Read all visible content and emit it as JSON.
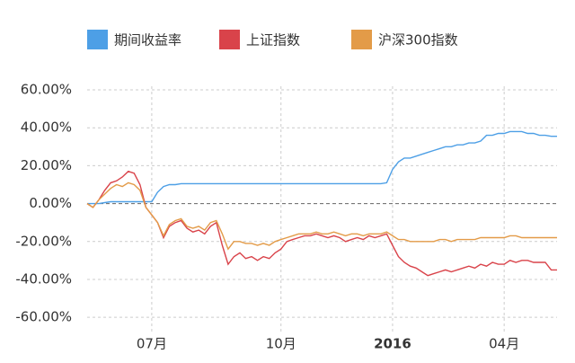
{
  "chart_data": {
    "type": "line",
    "categories": [
      null,
      null,
      null,
      null,
      null,
      null,
      null,
      null,
      null,
      null,
      null,
      "07月",
      null,
      null,
      null,
      null,
      null,
      null,
      null,
      null,
      null,
      null,
      null,
      null,
      null,
      null,
      null,
      null,
      null,
      null,
      null,
      null,
      null,
      "10月",
      null,
      null,
      null,
      null,
      null,
      null,
      null,
      null,
      null,
      null,
      null,
      null,
      null,
      null,
      null,
      null,
      null,
      null,
      "2016",
      null,
      null,
      null,
      null,
      null,
      null,
      null,
      null,
      null,
      null,
      null,
      null,
      null,
      null,
      null,
      null,
      null,
      null,
      "04月",
      null,
      null,
      null,
      null,
      null,
      null,
      null,
      null,
      null
    ],
    "series": [
      {
        "name": "期间收益率",
        "color": "#4d9fe6",
        "values": [
          0,
          0,
          0,
          0.5,
          1,
          1,
          1,
          1,
          1,
          1,
          1,
          1,
          6,
          9,
          10,
          10,
          10.5,
          10.5,
          10.5,
          10.5,
          10.5,
          10.5,
          10.5,
          10.5,
          10.5,
          10.5,
          10.5,
          10.5,
          10.5,
          10.5,
          10.5,
          10.5,
          10.5,
          10.5,
          10.5,
          10.5,
          10.5,
          10.5,
          10.5,
          10.5,
          10.5,
          10.5,
          10.5,
          10.5,
          10.5,
          10.5,
          10.5,
          10.5,
          10.5,
          10.5,
          10.5,
          11,
          18,
          22,
          24,
          24,
          25,
          26,
          27,
          28,
          29,
          30,
          30,
          31,
          31,
          32,
          32,
          33,
          36,
          36,
          37,
          37,
          38,
          38,
          38,
          37,
          37,
          36,
          36,
          35.5,
          35.5
        ]
      },
      {
        "name": "上证指数",
        "color": "#d9434a",
        "values": [
          0,
          -2,
          2,
          7,
          11,
          12,
          14,
          17,
          16,
          10,
          -2,
          -6,
          -10,
          -18,
          -12,
          -10,
          -9,
          -13,
          -15,
          -14,
          -16,
          -12,
          -10,
          -22,
          -32,
          -28,
          -26,
          -29,
          -28,
          -30,
          -28,
          -29,
          -26,
          -24,
          -20,
          -19,
          -18,
          -17,
          -17,
          -16,
          -17,
          -18,
          -17,
          -18,
          -20,
          -19,
          -18,
          -19,
          -17,
          -18,
          -17,
          -16,
          -22,
          -28,
          -31,
          -33,
          -34,
          -36,
          -38,
          -37,
          -36,
          -35,
          -36,
          -35,
          -34,
          -33,
          -34,
          -32,
          -33,
          -31,
          -32,
          -32,
          -30,
          -31,
          -30,
          -30,
          -31,
          -31,
          -31,
          -35,
          -35
        ]
      },
      {
        "name": "沪深300指数",
        "color": "#e39b48",
        "values": [
          0,
          -2,
          2,
          5,
          8,
          10,
          9,
          11,
          10,
          7,
          -2,
          -6,
          -10,
          -17,
          -11,
          -9,
          -8,
          -12,
          -13,
          -12,
          -14,
          -10,
          -9,
          -16,
          -24,
          -20,
          -20,
          -21,
          -21,
          -22,
          -21,
          -22,
          -20,
          -19,
          -18,
          -17,
          -16,
          -16,
          -16,
          -15,
          -16,
          -16,
          -15,
          -16,
          -17,
          -16,
          -16,
          -17,
          -16,
          -16,
          -16,
          -15,
          -17,
          -19,
          -19,
          -20,
          -20,
          -20,
          -20,
          -20,
          -19,
          -19,
          -20,
          -19,
          -19,
          -19,
          -19,
          -18,
          -18,
          -18,
          -18,
          -18,
          -17,
          -17,
          -18,
          -18,
          -18,
          -18,
          -18,
          -18,
          -18
        ]
      }
    ],
    "ylim": [
      -68,
      60
    ],
    "yticks": [
      {
        "value": -60,
        "label": "-60.00%"
      },
      {
        "value": -40,
        "label": "-40.00%"
      },
      {
        "value": -20,
        "label": "-20.00%"
      },
      {
        "value": 0,
        "label": "0.00%"
      },
      {
        "value": 20,
        "label": "20.00%"
      },
      {
        "value": 40,
        "label": "40.00%"
      },
      {
        "value": 60,
        "label": "60.00%"
      }
    ],
    "grid": true,
    "legend": "top"
  }
}
